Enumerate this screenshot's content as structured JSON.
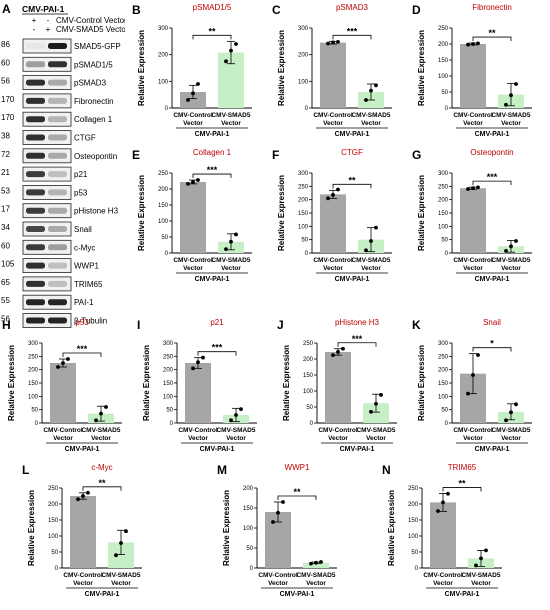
{
  "blot": {
    "panel_label": "A",
    "header": "CMV-PAI-1",
    "conditions": [
      {
        "name": "CMV-Control Vector",
        "signs": [
          "+",
          "-"
        ]
      },
      {
        "name": "CMV-SMAD5 Vector",
        "signs": [
          "-",
          "+"
        ]
      }
    ],
    "rows": [
      {
        "kda": "86",
        "label": "SMAD5-GFP",
        "intensity": [
          0.02,
          0.95
        ]
      },
      {
        "kda": "60",
        "label": "pSMAD1/5",
        "intensity": [
          0.35,
          0.85
        ]
      },
      {
        "kda": "56",
        "label": "pSMAD3",
        "intensity": [
          0.85,
          0.3
        ]
      },
      {
        "kda": "170",
        "label": "Fibronectin",
        "intensity": [
          0.85,
          0.25
        ]
      },
      {
        "kda": "170",
        "label": "Collagen 1",
        "intensity": [
          0.85,
          0.25
        ]
      },
      {
        "kda": "38",
        "label": "CTGF",
        "intensity": [
          0.85,
          0.3
        ]
      },
      {
        "kda": "72",
        "label": "Osteopontin",
        "intensity": [
          0.85,
          0.3
        ]
      },
      {
        "kda": "21",
        "label": "p21",
        "intensity": [
          0.8,
          0.2
        ]
      },
      {
        "kda": "53",
        "label": "p53",
        "intensity": [
          0.8,
          0.25
        ]
      },
      {
        "kda": "17",
        "label": "pHistone H3",
        "intensity": [
          0.8,
          0.3
        ]
      },
      {
        "kda": "34",
        "label": "Snail",
        "intensity": [
          0.75,
          0.3
        ]
      },
      {
        "kda": "60",
        "label": "c-Myc",
        "intensity": [
          0.8,
          0.35
        ]
      },
      {
        "kda": "105",
        "label": "WWP1",
        "intensity": [
          0.85,
          0.2
        ]
      },
      {
        "kda": "65",
        "label": "TRIM65",
        "intensity": [
          0.85,
          0.2
        ]
      },
      {
        "kda": "55",
        "label": "PAI-1",
        "intensity": [
          0.9,
          0.9
        ]
      },
      {
        "kda": "56",
        "label": "β-Tubulin",
        "intensity": [
          0.9,
          0.9
        ]
      }
    ]
  },
  "colors": {
    "control_bar": "#a6a6a6",
    "smad5_bar": "#c6efc6",
    "title": "#c00000"
  },
  "chart_data": [
    {
      "panel": "B",
      "type": "bar",
      "title": "pSMAD1/5",
      "ylabel": "Relative Expression",
      "ylim": [
        0,
        300
      ],
      "yticks": [
        0,
        100,
        200,
        300
      ],
      "categories": [
        "CMV-Control Vector",
        "CMV-SMAD5 Vector"
      ],
      "group": "CMV-PAI-1",
      "values": [
        60,
        208
      ],
      "errors": [
        25,
        42
      ],
      "points": [
        [
          30,
          55,
          90
        ],
        [
          175,
          215,
          240
        ]
      ],
      "significance": "**"
    },
    {
      "panel": "C",
      "type": "bar",
      "title": "pSMAD3",
      "ylabel": "Relative Expression",
      "ylim": [
        0,
        300
      ],
      "yticks": [
        0,
        100,
        200,
        300
      ],
      "categories": [
        "CMV-Control Vector",
        "CMV-SMAD5 Vector"
      ],
      "group": "CMV-PAI-1",
      "values": [
        245,
        60
      ],
      "errors": [
        5,
        30
      ],
      "points": [
        [
          242,
          246,
          248
        ],
        [
          30,
          65,
          85
        ]
      ],
      "significance": "***"
    },
    {
      "panel": "D",
      "type": "bar",
      "title": "Fibronectin",
      "ylabel": "Relative Expression",
      "ylim": [
        0,
        250
      ],
      "yticks": [
        0,
        50,
        100,
        150,
        200,
        250
      ],
      "categories": [
        "CMV-Control Vector",
        "CMV-SMAD5 Vector"
      ],
      "group": "CMV-PAI-1",
      "values": [
        200,
        42
      ],
      "errors": [
        3,
        35
      ],
      "points": [
        [
          198,
          200,
          202
        ],
        [
          10,
          40,
          75
        ]
      ],
      "significance": "**"
    },
    {
      "panel": "E",
      "type": "bar",
      "title": "Collagen 1",
      "ylabel": "Relative Expression",
      "ylim": [
        0,
        250
      ],
      "yticks": [
        0,
        50,
        100,
        150,
        200,
        250
      ],
      "categories": [
        "CMV-Control Vector",
        "CMV-SMAD5 Vector"
      ],
      "group": "CMV-PAI-1",
      "values": [
        222,
        35
      ],
      "errors": [
        6,
        25
      ],
      "points": [
        [
          216,
          222,
          228
        ],
        [
          12,
          35,
          58
        ]
      ],
      "significance": "***"
    },
    {
      "panel": "F",
      "type": "bar",
      "title": "CTGF",
      "ylabel": "Relative Expression",
      "ylim": [
        0,
        300
      ],
      "yticks": [
        0,
        50,
        100,
        150,
        200,
        250,
        300
      ],
      "categories": [
        "CMV-Control Vector",
        "CMV-SMAD5 Vector"
      ],
      "group": "CMV-PAI-1",
      "values": [
        220,
        50
      ],
      "errors": [
        15,
        45
      ],
      "points": [
        [
          205,
          218,
          238
        ],
        [
          10,
          45,
          95
        ]
      ],
      "significance": "**"
    },
    {
      "panel": "G",
      "type": "bar",
      "title": "Osteopontin",
      "ylabel": "Relative Expression",
      "ylim": [
        0,
        300
      ],
      "yticks": [
        0,
        50,
        100,
        150,
        200,
        250,
        300
      ],
      "categories": [
        "CMV-Control Vector",
        "CMV-SMAD5 Vector"
      ],
      "group": "CMV-PAI-1",
      "values": [
        243,
        25
      ],
      "errors": [
        4,
        22
      ],
      "points": [
        [
          240,
          243,
          246
        ],
        [
          8,
          25,
          45
        ]
      ],
      "significance": "***"
    },
    {
      "panel": "H",
      "type": "bar",
      "title": "p53",
      "ylabel": "Relative Expression",
      "ylim": [
        0,
        300
      ],
      "yticks": [
        0,
        50,
        100,
        150,
        200,
        250,
        300
      ],
      "categories": [
        "CMV-Control Vector",
        "CMV-SMAD5 Vector"
      ],
      "group": "CMV-PAI-1",
      "values": [
        225,
        35
      ],
      "errors": [
        15,
        28
      ],
      "points": [
        [
          210,
          225,
          240
        ],
        [
          10,
          35,
          60
        ]
      ],
      "significance": "***"
    },
    {
      "panel": "I",
      "type": "bar",
      "title": "p21",
      "ylabel": "Relative Expression",
      "ylim": [
        0,
        300
      ],
      "yticks": [
        0,
        50,
        100,
        150,
        200,
        250,
        300
      ],
      "categories": [
        "CMV-Control Vector",
        "CMV-SMAD5 Vector"
      ],
      "group": "CMV-PAI-1",
      "values": [
        225,
        30
      ],
      "errors": [
        20,
        25
      ],
      "points": [
        [
          205,
          228,
          245
        ],
        [
          10,
          30,
          52
        ]
      ],
      "significance": "***"
    },
    {
      "panel": "J",
      "type": "bar",
      "title": "pHistone H3",
      "ylabel": "Relative Expression",
      "ylim": [
        0,
        250
      ],
      "yticks": [
        0,
        50,
        100,
        150,
        200,
        250
      ],
      "categories": [
        "CMV-Control Vector",
        "CMV-SMAD5 Vector"
      ],
      "group": "CMV-PAI-1",
      "values": [
        222,
        62
      ],
      "errors": [
        10,
        28
      ],
      "points": [
        [
          212,
          222,
          232
        ],
        [
          35,
          60,
          88
        ]
      ],
      "significance": "***"
    },
    {
      "panel": "K",
      "type": "bar",
      "title": "Snail",
      "ylabel": "Relative Expression",
      "ylim": [
        0,
        300
      ],
      "yticks": [
        0,
        50,
        100,
        150,
        200,
        250,
        300
      ],
      "categories": [
        "CMV-Control Vector",
        "CMV-SMAD5 Vector"
      ],
      "group": "CMV-PAI-1",
      "values": [
        185,
        42
      ],
      "errors": [
        75,
        30
      ],
      "points": [
        [
          110,
          180,
          255
        ],
        [
          10,
          40,
          70
        ]
      ],
      "significance": "*"
    },
    {
      "panel": "L",
      "type": "bar",
      "title": "c-Myc",
      "ylabel": "Relative Expression",
      "ylim": [
        0,
        250
      ],
      "yticks": [
        0,
        50,
        100,
        150,
        200,
        250
      ],
      "categories": [
        "CMV-Control Vector",
        "CMV-SMAD5 Vector"
      ],
      "group": "CMV-PAI-1",
      "values": [
        225,
        80
      ],
      "errors": [
        10,
        38
      ],
      "points": [
        [
          215,
          225,
          235
        ],
        [
          40,
          78,
          115
        ]
      ],
      "significance": "**"
    },
    {
      "panel": "M",
      "type": "bar",
      "title": "WWP1",
      "ylabel": "Relative Expression",
      "ylim": [
        0,
        200
      ],
      "yticks": [
        0,
        50,
        100,
        150,
        200
      ],
      "categories": [
        "CMV-Control Vector",
        "CMV-SMAD5 Vector"
      ],
      "group": "CMV-PAI-1",
      "values": [
        140,
        13
      ],
      "errors": [
        25,
        2
      ],
      "points": [
        [
          115,
          138,
          165
        ],
        [
          11,
          13,
          15
        ]
      ],
      "significance": "**"
    },
    {
      "panel": "N",
      "type": "bar",
      "title": "TRIM65",
      "ylabel": "Relative Expression",
      "ylim": [
        0,
        250
      ],
      "yticks": [
        0,
        50,
        100,
        150,
        200,
        250
      ],
      "categories": [
        "CMV-Control Vector",
        "CMV-SMAD5 Vector"
      ],
      "group": "CMV-PAI-1",
      "values": [
        205,
        30
      ],
      "errors": [
        28,
        25
      ],
      "points": [
        [
          178,
          205,
          232
        ],
        [
          8,
          30,
          55
        ]
      ],
      "significance": "**"
    }
  ]
}
